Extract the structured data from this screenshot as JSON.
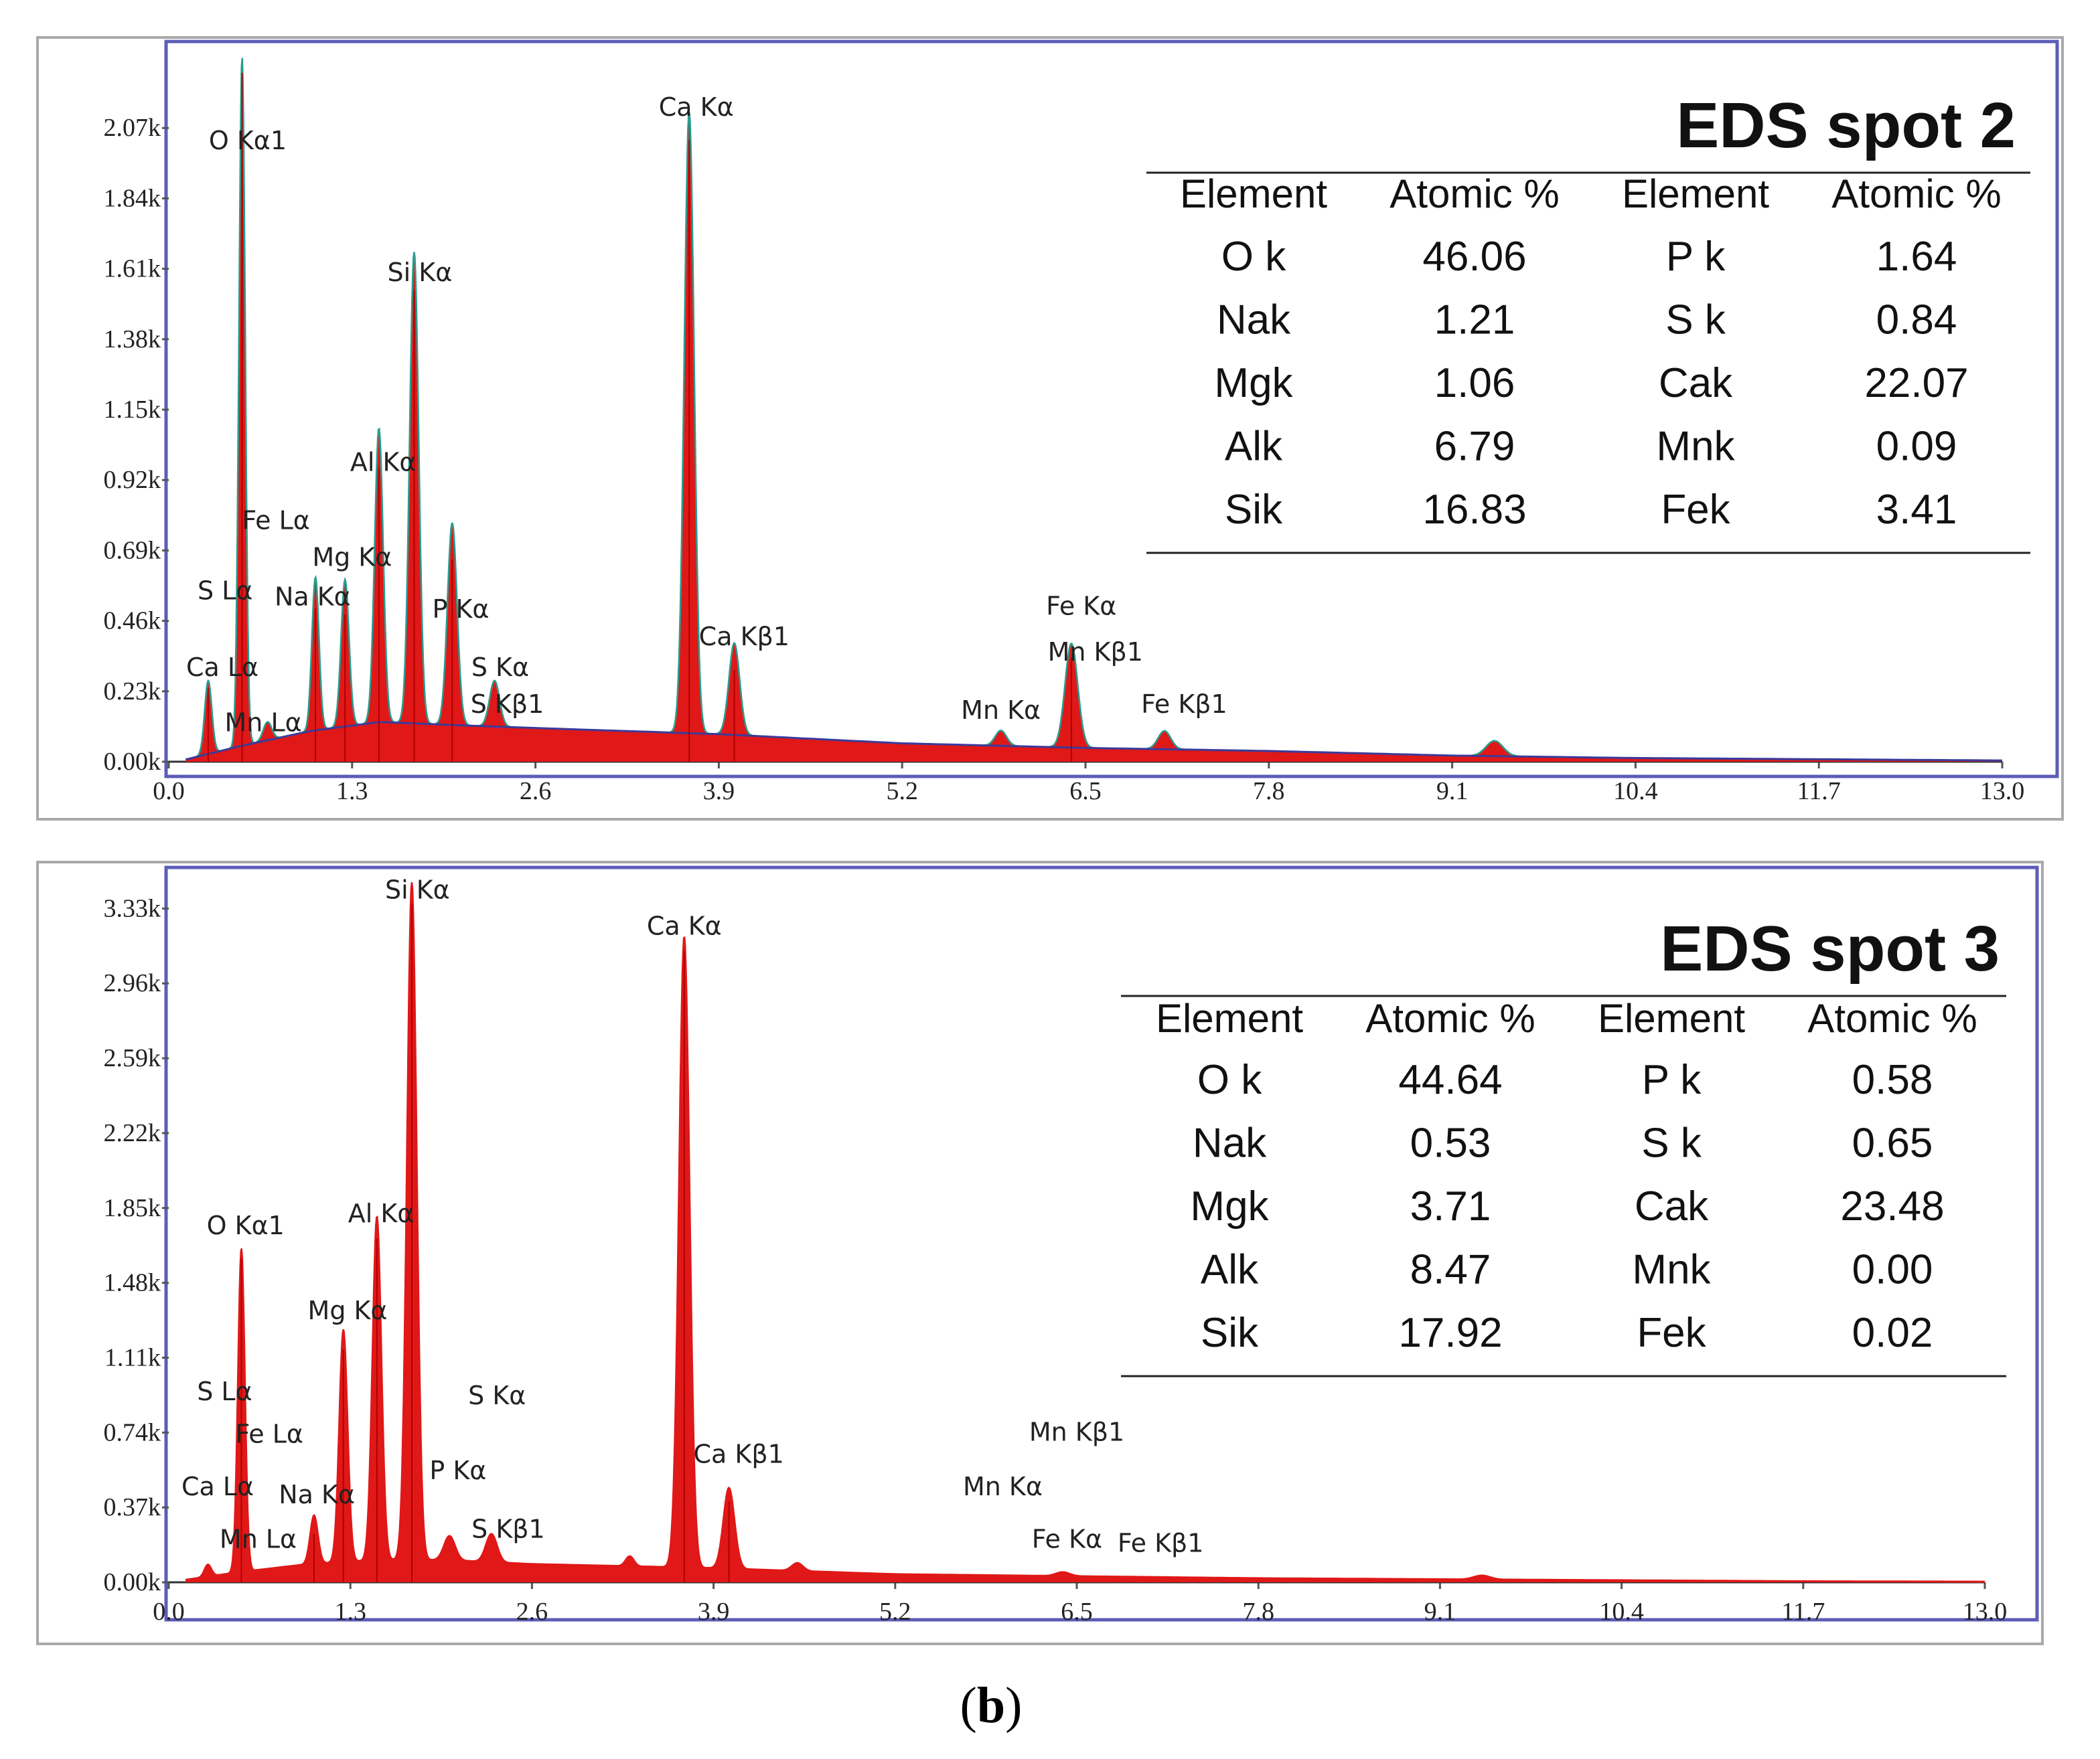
{
  "figure": {
    "caption_open": "(",
    "caption_letter": "b",
    "caption_close": ")"
  },
  "chart_data": [
    {
      "type": "area",
      "title": "EDS spot 2",
      "xlabel": "",
      "ylabel": "",
      "xlim": [
        0.0,
        13.0
      ],
      "ylim": [
        0.0,
        2.3
      ],
      "x_ticks": [
        "0.0",
        "1.3",
        "2.6",
        "3.9",
        "5.2",
        "6.5",
        "7.8",
        "9.1",
        "10.4",
        "11.7",
        "13.0"
      ],
      "y_ticks": [
        "0.00k",
        "0.23k",
        "0.46k",
        "0.69k",
        "0.92k",
        "1.15k",
        "1.38k",
        "1.61k",
        "1.84k",
        "2.07k"
      ],
      "series": [
        {
          "name": "spectrum",
          "background": [
            [
              0.1,
              0.005
            ],
            [
              0.5,
              0.05
            ],
            [
              1.0,
              0.1
            ],
            [
              1.5,
              0.13
            ],
            [
              2.0,
              0.12
            ],
            [
              2.6,
              0.11
            ],
            [
              3.9,
              0.09
            ],
            [
              5.2,
              0.06
            ],
            [
              6.5,
              0.045
            ],
            [
              7.8,
              0.035
            ],
            [
              9.1,
              0.02
            ],
            [
              10.4,
              0.012
            ],
            [
              11.7,
              0.008
            ],
            [
              13.0,
              0.004
            ]
          ],
          "peaks": [
            {
              "x": 0.28,
              "y": 0.24,
              "w": 0.025
            },
            {
              "x": 0.52,
              "y": 2.25,
              "w": 0.022
            },
            {
              "x": 0.7,
              "y": 0.06,
              "w": 0.03
            },
            {
              "x": 1.04,
              "y": 0.5,
              "w": 0.025
            },
            {
              "x": 1.25,
              "y": 0.48,
              "w": 0.028
            },
            {
              "x": 1.49,
              "y": 0.96,
              "w": 0.03
            },
            {
              "x": 1.74,
              "y": 1.54,
              "w": 0.032
            },
            {
              "x": 2.01,
              "y": 0.66,
              "w": 0.034
            },
            {
              "x": 2.31,
              "y": 0.15,
              "w": 0.035
            },
            {
              "x": 3.69,
              "y": 2.03,
              "w": 0.035
            },
            {
              "x": 4.01,
              "y": 0.3,
              "w": 0.038
            },
            {
              "x": 5.9,
              "y": 0.05,
              "w": 0.04
            },
            {
              "x": 6.4,
              "y": 0.34,
              "w": 0.045
            },
            {
              "x": 7.06,
              "y": 0.06,
              "w": 0.045
            },
            {
              "x": 9.4,
              "y": 0.05,
              "w": 0.06
            }
          ]
        }
      ],
      "peak_labels": [
        {
          "text": "O  Kα1",
          "x": 0.56,
          "y": 2.0
        },
        {
          "text": "Ca Kα",
          "x": 3.74,
          "y": 2.11
        },
        {
          "text": "Si Kα",
          "x": 1.78,
          "y": 1.57
        },
        {
          "text": "Al Kα",
          "x": 1.52,
          "y": 0.95
        },
        {
          "text": "Fe Lα",
          "x": 0.76,
          "y": 0.76
        },
        {
          "text": "Mg Kα",
          "x": 1.3,
          "y": 0.64
        },
        {
          "text": "S  Lα",
          "x": 0.4,
          "y": 0.53
        },
        {
          "text": "Na Kα",
          "x": 1.02,
          "y": 0.51
        },
        {
          "text": "P  Kα",
          "x": 2.07,
          "y": 0.47
        },
        {
          "text": "Ca Kβ1",
          "x": 4.08,
          "y": 0.38
        },
        {
          "text": "Fe Kα",
          "x": 6.47,
          "y": 0.48
        },
        {
          "text": "Mn Kβ1",
          "x": 6.57,
          "y": 0.33
        },
        {
          "text": "S  Kα",
          "x": 2.35,
          "y": 0.28
        },
        {
          "text": "Ca Lα",
          "x": 0.38,
          "y": 0.28
        },
        {
          "text": "S  Kβ1",
          "x": 2.4,
          "y": 0.16
        },
        {
          "text": "Fe Kβ1",
          "x": 7.2,
          "y": 0.16
        },
        {
          "text": "Mn Kα",
          "x": 5.9,
          "y": 0.14
        },
        {
          "text": "Mn Lα",
          "x": 0.67,
          "y": 0.1
        }
      ],
      "table": {
        "headers": [
          "Element",
          "Atomic %",
          "Element",
          "Atomic %"
        ],
        "rows": [
          [
            "O k",
            "46.06",
            "P k",
            "1.64"
          ],
          [
            "Nak",
            "1.21",
            "S k",
            "0.84"
          ],
          [
            "Mgk",
            "1.06",
            "Cak",
            "22.07"
          ],
          [
            "Alk",
            "6.79",
            "Mnk",
            "0.09"
          ],
          [
            "Sik",
            "16.83",
            "Fek",
            "3.41"
          ]
        ]
      },
      "colors": {
        "fill": "#e01818",
        "trace": "#2a9d8f",
        "background_line": "#3b3b9a",
        "frame": "#5c5cb8"
      }
    },
    {
      "type": "area",
      "title": "EDS spot 3",
      "xlabel": "",
      "ylabel": "",
      "xlim": [
        0.0,
        13.0
      ],
      "ylim": [
        0.0,
        3.5
      ],
      "x_ticks": [
        "0.0",
        "1.3",
        "2.6",
        "3.9",
        "5.2",
        "6.5",
        "7.8",
        "9.1",
        "10.4",
        "11.7",
        "13.0"
      ],
      "y_ticks": [
        "0.00k",
        "0.37k",
        "0.74k",
        "1.11k",
        "1.48k",
        "1.85k",
        "2.22k",
        "2.59k",
        "2.96k",
        "3.33k"
      ],
      "series": [
        {
          "name": "spectrum",
          "background": [
            [
              0.1,
              0.01
            ],
            [
              0.5,
              0.05
            ],
            [
              1.0,
              0.09
            ],
            [
              1.5,
              0.11
            ],
            [
              2.0,
              0.11
            ],
            [
              2.6,
              0.09
            ],
            [
              3.9,
              0.07
            ],
            [
              5.2,
              0.04
            ],
            [
              6.5,
              0.03
            ],
            [
              7.8,
              0.02
            ],
            [
              9.1,
              0.015
            ],
            [
              10.4,
              0.01
            ],
            [
              11.7,
              0.005
            ],
            [
              13.0,
              0.003
            ]
          ],
          "peaks": [
            {
              "x": 0.28,
              "y": 0.06,
              "w": 0.025
            },
            {
              "x": 0.52,
              "y": 1.6,
              "w": 0.025
            },
            {
              "x": 1.04,
              "y": 0.24,
              "w": 0.028
            },
            {
              "x": 1.25,
              "y": 1.15,
              "w": 0.03
            },
            {
              "x": 1.49,
              "y": 1.7,
              "w": 0.032
            },
            {
              "x": 1.74,
              "y": 3.35,
              "w": 0.035
            },
            {
              "x": 2.01,
              "y": 0.12,
              "w": 0.04
            },
            {
              "x": 2.31,
              "y": 0.14,
              "w": 0.04
            },
            {
              "x": 3.3,
              "y": 0.05,
              "w": 0.03
            },
            {
              "x": 3.69,
              "y": 3.12,
              "w": 0.038
            },
            {
              "x": 4.01,
              "y": 0.4,
              "w": 0.04
            },
            {
              "x": 4.5,
              "y": 0.04,
              "w": 0.04
            },
            {
              "x": 6.4,
              "y": 0.02,
              "w": 0.05
            },
            {
              "x": 9.4,
              "y": 0.02,
              "w": 0.06
            }
          ]
        }
      ],
      "peak_labels": [
        {
          "text": "Si Kα",
          "x": 1.78,
          "y": 3.38
        },
        {
          "text": "Ca Kα",
          "x": 3.69,
          "y": 3.2
        },
        {
          "text": "O  Kα1",
          "x": 0.55,
          "y": 1.72
        },
        {
          "text": "Al Kα",
          "x": 1.52,
          "y": 1.78
        },
        {
          "text": "Mg Kα",
          "x": 1.28,
          "y": 1.3
        },
        {
          "text": "S  Lα",
          "x": 0.4,
          "y": 0.9
        },
        {
          "text": "S  Kα",
          "x": 2.35,
          "y": 0.88
        },
        {
          "text": "Mn Kβ1",
          "x": 6.5,
          "y": 0.7
        },
        {
          "text": "Fe Lα",
          "x": 0.72,
          "y": 0.69
        },
        {
          "text": "P  Kα",
          "x": 2.07,
          "y": 0.51
        },
        {
          "text": "Ca Kβ1",
          "x": 4.08,
          "y": 0.59
        },
        {
          "text": "Mn Kα",
          "x": 5.97,
          "y": 0.43
        },
        {
          "text": "Ca Lα",
          "x": 0.35,
          "y": 0.43
        },
        {
          "text": "Na Kα",
          "x": 1.06,
          "y": 0.39
        },
        {
          "text": "S  Kβ1",
          "x": 2.43,
          "y": 0.22
        },
        {
          "text": "Mn Lα",
          "x": 0.64,
          "y": 0.17
        },
        {
          "text": "Fe Kα",
          "x": 6.43,
          "y": 0.17
        },
        {
          "text": "Fe Kβ1",
          "x": 7.1,
          "y": 0.15
        }
      ],
      "table": {
        "headers": [
          "Element",
          "Atomic %",
          "Element",
          "Atomic %"
        ],
        "rows": [
          [
            "O k",
            "44.64",
            "P k",
            "0.58"
          ],
          [
            "Nak",
            "0.53",
            "S k",
            "0.65"
          ],
          [
            "Mgk",
            "3.71",
            "Cak",
            "23.48"
          ],
          [
            "Alk",
            "8.47",
            "Mnk",
            "0.00"
          ],
          [
            "Sik",
            "17.92",
            "Fek",
            "0.02"
          ]
        ]
      },
      "colors": {
        "fill": "#e01818",
        "trace": "#e01818",
        "background_line": "#e01818",
        "frame": "#5c5cb8"
      }
    }
  ]
}
